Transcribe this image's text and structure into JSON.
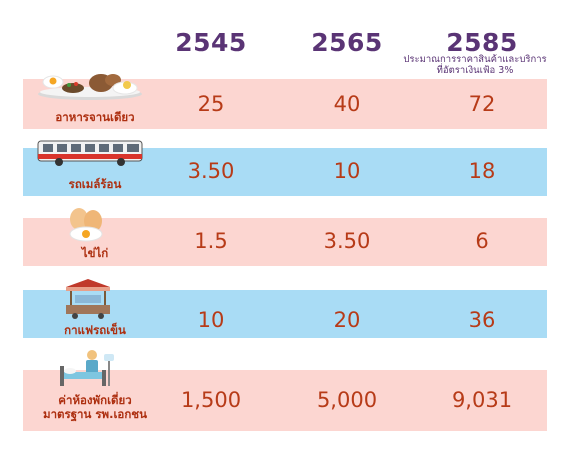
{
  "years": [
    "2545",
    "2565",
    "2585"
  ],
  "projection_note": [
    "ประมาณการราคาสินค้าและบริการ",
    "ที่อัตราเงินเฟ้อ  3%"
  ],
  "rows": [
    {
      "label": "อาหารจานเดียว",
      "icon": "food-plate-icon",
      "values": [
        "25",
        "40",
        "72"
      ]
    },
    {
      "label": "รถเมล์ร้อน",
      "icon": "bus-icon",
      "values": [
        "3.50",
        "10",
        "18"
      ]
    },
    {
      "label": "ไข่ไก่",
      "icon": "eggs-icon",
      "values": [
        "1.5",
        "3.50",
        "6"
      ]
    },
    {
      "label": "กาแฟรถเข็น",
      "icon": "coffee-cart-icon",
      "values": [
        "10",
        "20",
        "36"
      ]
    },
    {
      "label_lines": [
        "ค่าห้องพักเดี่ยว",
        "มาตรฐาน รพ.เอกชน"
      ],
      "icon": "hospital-bed-icon",
      "values": [
        "1,500",
        "5,000",
        "9,031"
      ]
    }
  ],
  "colors": {
    "pink_band": "#fcd6d1",
    "blue_band": "#a9dcf5",
    "year_text": "#5a3475",
    "value_text": "#b73b18"
  }
}
